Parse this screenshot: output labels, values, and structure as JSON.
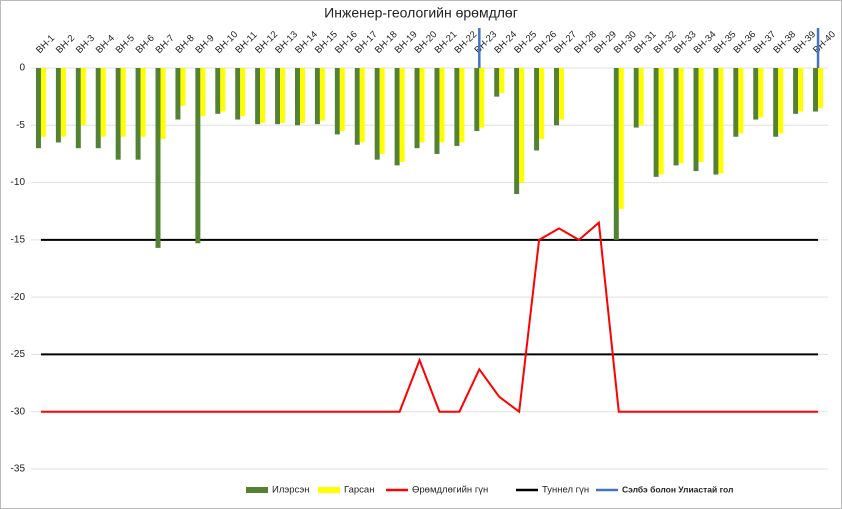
{
  "chart_data": {
    "type": "bar",
    "title": "Инженер-геологийн өрөмдлөг",
    "categories": [
      "BH-1",
      "BH-2",
      "BH-3",
      "BH-4",
      "BH-5",
      "BH-6",
      "BH-7",
      "BH-8",
      "BH-9",
      "BH-10",
      "BH-11",
      "BH-12",
      "BH-13",
      "BH-14",
      "BH-15",
      "BH-16",
      "BH-17",
      "BH-18",
      "BH-19",
      "BH-20",
      "BH-21",
      "BH-22",
      "BH-23",
      "BH-24",
      "BH-25",
      "BH-26",
      "BH-27",
      "BH-28",
      "BH-29",
      "BH-30",
      "BH-31",
      "BH-32",
      "BH-33",
      "BH-34",
      "BH-35",
      "BH-36",
      "BH-37",
      "BH-38",
      "BH-39",
      "BH-40"
    ],
    "series": [
      {
        "name": "Илэрсэн",
        "color": "#548235",
        "values": [
          -7,
          -6.5,
          -7,
          -7,
          -8,
          -8,
          -15.7,
          -4.5,
          -15.3,
          -4,
          -4.5,
          -4.9,
          -4.9,
          -5,
          -4.9,
          -5.8,
          -6.7,
          -8,
          -8.5,
          -7,
          -7.5,
          -6.8,
          -5.5,
          -2.5,
          -11,
          -7.2,
          -5,
          null,
          null,
          -15,
          -5.2,
          -9.5,
          -8.5,
          -9,
          -9.3,
          -6,
          -4.5,
          -6,
          -4,
          -3.8
        ]
      },
      {
        "name": "Гарсан",
        "color": "#ffff00",
        "values": [
          -6,
          -6,
          -5,
          -6,
          -6,
          -6,
          -6.2,
          -3.3,
          -4.2,
          -3.8,
          -4.2,
          -4.8,
          -4.8,
          -4.8,
          -4.6,
          -5.5,
          -6.5,
          -7.5,
          -8.2,
          -6.5,
          -6.5,
          -6.5,
          -5.2,
          -2.2,
          -10,
          -6.2,
          -4.5,
          null,
          null,
          -12.3,
          -5,
          -9.3,
          -8.3,
          -8.2,
          -9.2,
          -5.7,
          -4.3,
          -5.7,
          -3.8,
          -3.5
        ]
      },
      {
        "name": "Өрөмдлөгийн гүн",
        "color": "#ff0000",
        "type": "line",
        "values": [
          -30,
          -30,
          -30,
          -30,
          -30,
          -30,
          -30,
          -30,
          -30,
          -30,
          -30,
          -30,
          -30,
          -30,
          -30,
          -30,
          -30,
          -30,
          -30,
          -25.5,
          -30,
          -30,
          -26.3,
          -28.7,
          -30,
          -15,
          -14,
          -15,
          -13.5,
          -30,
          -30,
          -30,
          -30,
          -30,
          -30,
          -30,
          -30,
          -30,
          -30,
          -30
        ]
      }
    ],
    "reference_lines": {
      "name": "Туннел гүн",
      "color": "#000000",
      "values": [
        -15,
        -25
      ]
    },
    "markers": {
      "name": "Сэлбэ болон Улиастай гол",
      "color": "#4472c4",
      "categories": [
        "BH-23",
        "BH-40"
      ]
    },
    "ylim": [
      -35,
      0
    ],
    "yticks": [
      0,
      -5,
      -10,
      -15,
      -20,
      -25,
      -30,
      -35
    ],
    "grid": true
  }
}
